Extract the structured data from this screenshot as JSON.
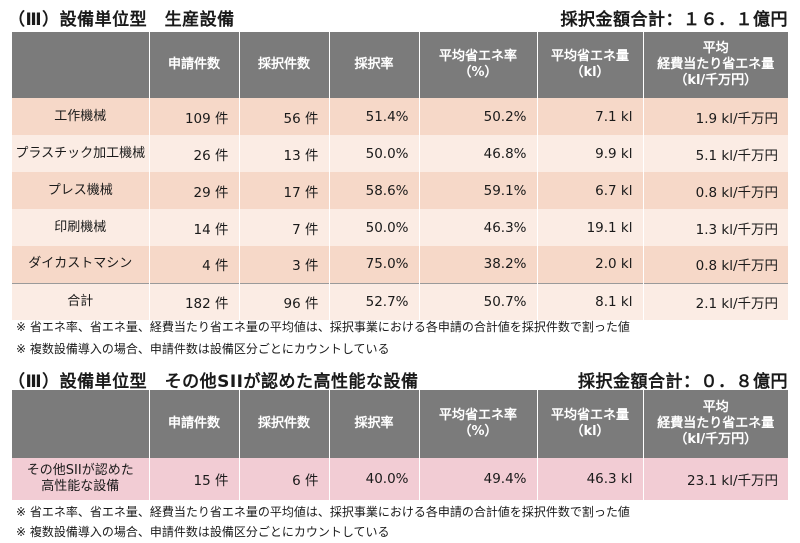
{
  "section1": {
    "title": "（Ⅲ）設備単位型　生産設備",
    "total": "採択金額合計：１６．１億円",
    "headers": [
      "申請件数",
      "採択件数",
      "採択率",
      "平均省エネ率\n（%）",
      "平均省エネ量\n（kl）",
      "平均\n経費当たり省エネ量\n（kl/千万円）"
    ],
    "rows": [
      {
        "label": "工作機械",
        "cells": [
          "109 件",
          "56 件",
          "51.4%",
          "50.2%",
          "7.1 kl",
          "1.9 kl/千万円"
        ]
      },
      {
        "label": "プラスチック加工機械",
        "cells": [
          "26 件",
          "13 件",
          "50.0%",
          "46.8%",
          "9.9 kl",
          "5.1 kl/千万円"
        ]
      },
      {
        "label": "プレス機械",
        "cells": [
          "29 件",
          "17 件",
          "58.6%",
          "59.1%",
          "6.7 kl",
          "0.8 kl/千万円"
        ]
      },
      {
        "label": "印刷機械",
        "cells": [
          "14 件",
          "7 件",
          "50.0%",
          "46.3%",
          "19.1 kl",
          "1.3 kl/千万円"
        ]
      },
      {
        "label": "ダイカストマシン",
        "cells": [
          "4 件",
          "3 件",
          "75.0%",
          "38.2%",
          "2.0 kl",
          "0.8 kl/千万円"
        ]
      }
    ],
    "total_row": {
      "label": "合計",
      "cells": [
        "182 件",
        "96 件",
        "52.7%",
        "50.7%",
        "8.1 kl",
        "2.1 kl/千万円"
      ]
    },
    "notes": [
      "※ 省エネ率、省エネ量、経費当たり省エネ量の平均値は、採択事業における各申請の合計値を採択件数で割った値",
      "※ 複数設備導入の場合、申請件数は設備区分ごとにカウントしている"
    ]
  },
  "section2": {
    "title": "（Ⅲ）設備単位型　その他SIIが認めた高性能な設備",
    "total": "採択金額合計：０．８億円",
    "headers": [
      "申請件数",
      "採択件数",
      "採択率",
      "平均省エネ率\n（%）",
      "平均省エネ量\n（kl）",
      "平均\n経費当たり省エネ量\n（kl/千万円）"
    ],
    "rows": [
      {
        "label": "その他SIIが認めた\n高性能な設備",
        "cells": [
          "15 件",
          "6 件",
          "40.0%",
          "49.4%",
          "46.3 kl",
          "23.1 kl/千万円"
        ]
      }
    ],
    "notes": [
      "※ 省エネ率、省エネ量、経費当たり省エネ量の平均値は、採択事業における各申請の合計値を採択件数で割った値",
      "※ 複数設備導入の場合、申請件数は設備区分ごとにカウントしている"
    ]
  }
}
